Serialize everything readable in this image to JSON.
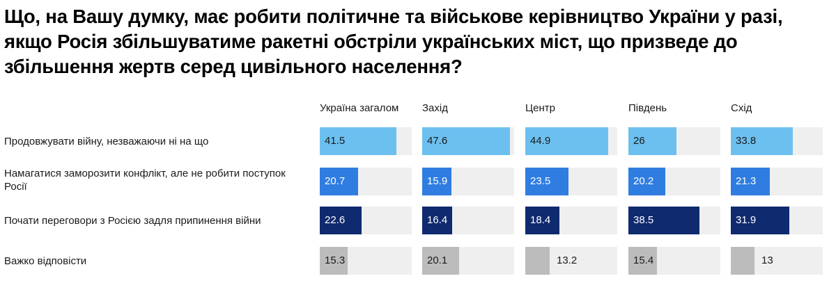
{
  "title": "Що, на Вашу думку, має робити політичне та військове керівництво України у разі, якщо Росія збільшуватиме ракетні обстріли українських міст, що призведе до збільшення жертв серед цивільного населення?",
  "chart_data": {
    "type": "bar",
    "title": "Що, на Вашу думку, має робити політичне та військове керівництво України у разі, якщо Росія збільшуватиме ракетні обстріли українських міст, що призведе до збільшення жертв серед цивільного населення?",
    "columns": [
      "Україна загалом",
      "Захід",
      "Центр",
      "Південь",
      "Схід"
    ],
    "rows": [
      {
        "label": "Продовжувати війну, незважаючи ні на що",
        "color": "#6cc0f0",
        "values": [
          41.5,
          47.6,
          44.9,
          26,
          33.8
        ]
      },
      {
        "label": "Намагатися заморозити конфлікт, але не робити поступок Росії",
        "color": "#2f7de0",
        "values": [
          20.7,
          15.9,
          23.5,
          20.2,
          21.3
        ]
      },
      {
        "label": "Почати переговори з Росією задля припинення війни",
        "color": "#0f2a6e",
        "values": [
          22.6,
          16.4,
          18.4,
          38.5,
          31.9
        ]
      },
      {
        "label": "Важко відповісти",
        "color": "#bcbcbc",
        "values": [
          15.3,
          20.1,
          13.2,
          15.4,
          13
        ]
      }
    ],
    "xlim": [
      0,
      50
    ],
    "value_units": "%",
    "track_color": "#efefef"
  }
}
